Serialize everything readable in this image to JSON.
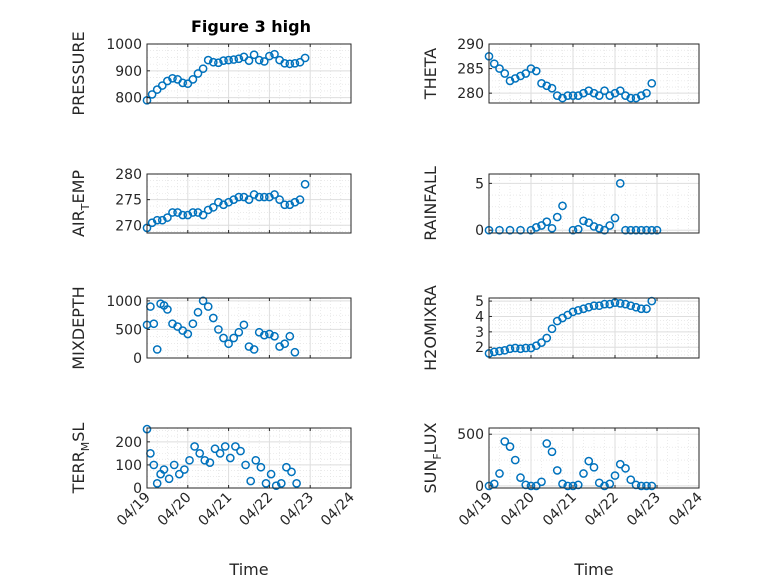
{
  "figure": {
    "title": "Figure 3 high"
  },
  "colors": {
    "marker": "#0072BD",
    "axis": "#262626",
    "grid": "#dedede"
  },
  "chart_data": [
    {
      "type": "scatter",
      "position": "top-left",
      "ylabel": "PRESSURE",
      "ylim": [
        780,
        1000
      ],
      "yticks": [
        "800",
        "900",
        "1000"
      ],
      "xlabel": "",
      "xlim": [
        "04/19",
        "04/24"
      ],
      "grid": true,
      "x": [
        "04/19 00:00",
        "04/19 03:00",
        "04/19 06:00",
        "04/19 09:00",
        "04/19 12:00",
        "04/19 15:00",
        "04/19 18:00",
        "04/19 21:00",
        "04/20 00:00",
        "04/20 03:00",
        "04/20 06:00",
        "04/20 09:00",
        "04/20 12:00",
        "04/20 15:00",
        "04/20 18:00",
        "04/20 21:00",
        "04/21 00:00",
        "04/21 03:00",
        "04/21 06:00",
        "04/21 09:00",
        "04/21 12:00",
        "04/21 15:00",
        "04/21 18:00",
        "04/21 21:00",
        "04/22 00:00",
        "04/22 03:00",
        "04/22 06:00",
        "04/22 09:00",
        "04/22 12:00",
        "04/22 15:00",
        "04/22 18:00",
        "04/22 21:00"
      ],
      "y": [
        790,
        812,
        830,
        845,
        862,
        872,
        868,
        855,
        852,
        868,
        890,
        908,
        940,
        932,
        930,
        938,
        940,
        942,
        945,
        952,
        938,
        960,
        940,
        935,
        955,
        962,
        940,
        928,
        926,
        928,
        932,
        948
      ]
    },
    {
      "type": "scatter",
      "position": "top-right",
      "ylabel": "THETA",
      "ylim": [
        278,
        290
      ],
      "yticks": [
        "280",
        "285",
        "290"
      ],
      "xlabel": "",
      "xlim": [
        "04/19",
        "04/24"
      ],
      "grid": true,
      "x": [
        "04/19 00:00",
        "04/19 03:00",
        "04/19 06:00",
        "04/19 09:00",
        "04/19 12:00",
        "04/19 15:00",
        "04/19 18:00",
        "04/19 21:00",
        "04/20 00:00",
        "04/20 03:00",
        "04/20 06:00",
        "04/20 09:00",
        "04/20 12:00",
        "04/20 15:00",
        "04/20 18:00",
        "04/20 21:00",
        "04/21 00:00",
        "04/21 03:00",
        "04/21 06:00",
        "04/21 09:00",
        "04/21 12:00",
        "04/21 15:00",
        "04/21 18:00",
        "04/21 21:00",
        "04/22 00:00",
        "04/22 03:00",
        "04/22 06:00",
        "04/22 09:00",
        "04/22 12:00",
        "04/22 15:00",
        "04/22 18:00",
        "04/22 21:00"
      ],
      "y": [
        287.5,
        286,
        285,
        284,
        282.5,
        283,
        283.5,
        284,
        285,
        284.5,
        282,
        281.5,
        281,
        279.5,
        279,
        279.5,
        279.5,
        279.5,
        280,
        280.5,
        280,
        279.5,
        280.5,
        279.5,
        280,
        280.5,
        279.5,
        279,
        279,
        279.5,
        280,
        282
      ]
    },
    {
      "type": "scatter",
      "position": "row2-left",
      "ylabel": "AIR_TEMP",
      "ylabel_main": "AIR",
      "ylabel_sub": "T",
      "ylabel_rest": "EMP",
      "ylim": [
        268.5,
        280
      ],
      "yticks": [
        "270",
        "275",
        "280"
      ],
      "xlabel": "",
      "xlim": [
        "04/19",
        "04/24"
      ],
      "grid": true,
      "x": [
        "04/19 00:00",
        "04/19 03:00",
        "04/19 06:00",
        "04/19 09:00",
        "04/19 12:00",
        "04/19 15:00",
        "04/19 18:00",
        "04/19 21:00",
        "04/20 00:00",
        "04/20 03:00",
        "04/20 06:00",
        "04/20 09:00",
        "04/20 12:00",
        "04/20 15:00",
        "04/20 18:00",
        "04/20 21:00",
        "04/21 00:00",
        "04/21 03:00",
        "04/21 06:00",
        "04/21 09:00",
        "04/21 12:00",
        "04/21 15:00",
        "04/21 18:00",
        "04/21 21:00",
        "04/22 00:00",
        "04/22 03:00",
        "04/22 06:00",
        "04/22 09:00",
        "04/22 12:00",
        "04/22 15:00",
        "04/22 18:00",
        "04/22 21:00"
      ],
      "y": [
        269.5,
        270.5,
        271,
        271,
        271.5,
        272.5,
        272.5,
        272,
        272,
        272.5,
        272.5,
        272,
        273,
        273.5,
        274.5,
        274,
        274.5,
        275,
        275.5,
        275.5,
        275,
        276,
        275.5,
        275.5,
        275.5,
        276,
        275,
        274,
        274,
        274.5,
        275,
        278
      ]
    },
    {
      "type": "scatter",
      "position": "row2-right",
      "ylabel": "RAINFALL",
      "ylim": [
        -0.3,
        6
      ],
      "yticks": [
        "0",
        "5"
      ],
      "xlabel": "",
      "xlim": [
        "04/19",
        "04/24"
      ],
      "grid": true,
      "x": [
        "04/19 00:00",
        "04/19 06:00",
        "04/19 12:00",
        "04/19 18:00",
        "04/20 00:00",
        "04/20 03:00",
        "04/20 06:00",
        "04/20 09:00",
        "04/20 12:00",
        "04/20 15:00",
        "04/20 18:00",
        "04/21 00:00",
        "04/21 03:00",
        "04/21 06:00",
        "04/21 09:00",
        "04/21 12:00",
        "04/21 15:00",
        "04/21 18:00",
        "04/21 21:00",
        "04/22 00:00",
        "04/22 03:00",
        "04/22 06:00",
        "04/22 09:00",
        "04/22 12:00",
        "04/22 15:00",
        "04/22 18:00",
        "04/22 21:00",
        "04/23 00:00"
      ],
      "y": [
        0,
        0,
        0,
        0,
        0,
        0.3,
        0.5,
        0.9,
        0.2,
        1.4,
        2.6,
        0,
        0.1,
        1.0,
        0.8,
        0.4,
        0.2,
        0,
        0.5,
        1.3,
        5.0,
        0,
        0,
        0,
        0,
        0,
        0,
        0
      ]
    },
    {
      "type": "scatter",
      "position": "row3-left",
      "ylabel": "MIXDEPTH",
      "ylim": [
        0,
        1050
      ],
      "yticks": [
        "0",
        "500",
        "1000"
      ],
      "xlabel": "",
      "xlim": [
        "04/19",
        "04/24"
      ],
      "grid": true,
      "x": [
        "04/19 00:00",
        "04/19 02:00",
        "04/19 04:00",
        "04/19 06:00",
        "04/19 08:00",
        "04/19 10:00",
        "04/19 12:00",
        "04/19 15:00",
        "04/19 18:00",
        "04/19 21:00",
        "04/20 00:00",
        "04/20 03:00",
        "04/20 06:00",
        "04/20 09:00",
        "04/20 12:00",
        "04/20 15:00",
        "04/20 18:00",
        "04/20 21:00",
        "04/21 00:00",
        "04/21 03:00",
        "04/21 06:00",
        "04/21 09:00",
        "04/21 12:00",
        "04/21 15:00",
        "04/21 18:00",
        "04/21 21:00",
        "04/22 00:00",
        "04/22 03:00",
        "04/22 06:00",
        "04/22 09:00",
        "04/22 12:00",
        "04/22 15:00"
      ],
      "y": [
        580,
        900,
        600,
        150,
        950,
        920,
        850,
        600,
        550,
        480,
        420,
        600,
        800,
        1000,
        900,
        700,
        500,
        350,
        250,
        350,
        450,
        580,
        200,
        150,
        450,
        400,
        420,
        380,
        200,
        250,
        380,
        100
      ]
    },
    {
      "type": "scatter",
      "position": "row3-right",
      "ylabel": "H2OMIXRA",
      "ylim": [
        1.3,
        5.2
      ],
      "yticks": [
        "2",
        "3",
        "4",
        "5"
      ],
      "xlabel": "",
      "xlim": [
        "04/19",
        "04/24"
      ],
      "grid": true,
      "x": [
        "04/19 00:00",
        "04/19 03:00",
        "04/19 06:00",
        "04/19 09:00",
        "04/19 12:00",
        "04/19 15:00",
        "04/19 18:00",
        "04/19 21:00",
        "04/20 00:00",
        "04/20 03:00",
        "04/20 06:00",
        "04/20 09:00",
        "04/20 12:00",
        "04/20 15:00",
        "04/20 18:00",
        "04/20 21:00",
        "04/21 00:00",
        "04/21 03:00",
        "04/21 06:00",
        "04/21 09:00",
        "04/21 12:00",
        "04/21 15:00",
        "04/21 18:00",
        "04/21 21:00",
        "04/22 00:00",
        "04/22 03:00",
        "04/22 06:00",
        "04/22 09:00",
        "04/22 12:00",
        "04/22 15:00",
        "04/22 18:00",
        "04/22 21:00"
      ],
      "y": [
        1.6,
        1.7,
        1.75,
        1.8,
        1.9,
        1.95,
        1.9,
        1.95,
        1.95,
        2.1,
        2.3,
        2.6,
        3.2,
        3.7,
        3.9,
        4.1,
        4.3,
        4.4,
        4.5,
        4.6,
        4.7,
        4.7,
        4.8,
        4.8,
        4.9,
        4.85,
        4.8,
        4.7,
        4.6,
        4.5,
        4.5,
        5.0
      ]
    },
    {
      "type": "scatter",
      "position": "bottom-left",
      "ylabel": "TERR_MSL",
      "ylabel_main": "TERR",
      "ylabel_sub": "M",
      "ylabel_rest": "SL",
      "ylim": [
        0,
        260
      ],
      "yticks": [
        "0",
        "100",
        "200"
      ],
      "xlabel": "Time",
      "xlim": [
        "04/19",
        "04/24"
      ],
      "xticks": [
        "04/19",
        "04/20",
        "04/21",
        "04/22",
        "04/23",
        "04/24"
      ],
      "grid": true,
      "x": [
        "04/19 00:00",
        "04/19 02:00",
        "04/19 04:00",
        "04/19 06:00",
        "04/19 08:00",
        "04/19 10:00",
        "04/19 13:00",
        "04/19 16:00",
        "04/19 19:00",
        "04/19 22:00",
        "04/20 01:00",
        "04/20 04:00",
        "04/20 07:00",
        "04/20 10:00",
        "04/20 13:00",
        "04/20 16:00",
        "04/20 19:00",
        "04/20 22:00",
        "04/21 01:00",
        "04/21 04:00",
        "04/21 07:00",
        "04/21 10:00",
        "04/21 13:00",
        "04/21 16:00",
        "04/21 19:00",
        "04/21 22:00",
        "04/22 01:00",
        "04/22 04:00",
        "04/22 07:00",
        "04/22 10:00",
        "04/22 13:00",
        "04/22 16:00"
      ],
      "y": [
        255,
        150,
        100,
        20,
        60,
        80,
        40,
        100,
        60,
        80,
        120,
        180,
        150,
        120,
        110,
        170,
        150,
        180,
        130,
        180,
        160,
        100,
        30,
        120,
        90,
        20,
        60,
        10,
        20,
        90,
        70,
        20
      ]
    },
    {
      "type": "scatter",
      "position": "bottom-right",
      "ylabel": "SUN_FLUX",
      "ylabel_main": "SUN",
      "ylabel_sub": "F",
      "ylabel_rest": "LUX",
      "ylim": [
        -20,
        560
      ],
      "yticks": [
        "0",
        "500"
      ],
      "xlabel": "Time",
      "xlim": [
        "04/19",
        "04/24"
      ],
      "xticks": [
        "04/19",
        "04/20",
        "04/21",
        "04/22",
        "04/23",
        "04/24"
      ],
      "grid": true,
      "x": [
        "04/19 00:00",
        "04/19 03:00",
        "04/19 06:00",
        "04/19 09:00",
        "04/19 12:00",
        "04/19 15:00",
        "04/19 18:00",
        "04/19 21:00",
        "04/20 00:00",
        "04/20 03:00",
        "04/20 06:00",
        "04/20 09:00",
        "04/20 12:00",
        "04/20 15:00",
        "04/20 18:00",
        "04/20 21:00",
        "04/21 00:00",
        "04/21 03:00",
        "04/21 06:00",
        "04/21 09:00",
        "04/21 12:00",
        "04/21 15:00",
        "04/21 18:00",
        "04/21 21:00",
        "04/22 00:00",
        "04/22 03:00",
        "04/22 06:00",
        "04/22 09:00",
        "04/22 12:00",
        "04/22 15:00",
        "04/22 18:00",
        "04/22 21:00"
      ],
      "y": [
        0,
        20,
        120,
        430,
        380,
        250,
        80,
        10,
        0,
        0,
        40,
        410,
        330,
        150,
        20,
        0,
        0,
        10,
        120,
        240,
        180,
        30,
        0,
        20,
        100,
        210,
        170,
        60,
        10,
        0,
        0,
        0
      ]
    }
  ]
}
